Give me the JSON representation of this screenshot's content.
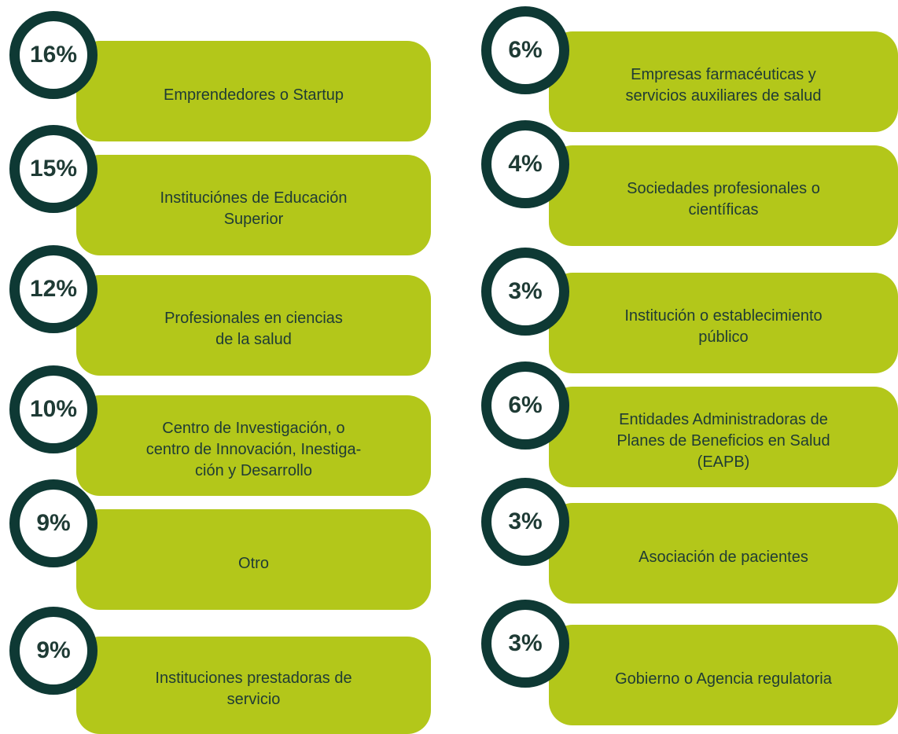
{
  "columns": [
    {
      "items": [
        {
          "percent": "16%",
          "lines": [
            "Emprendedores o Startup"
          ]
        },
        {
          "percent": "15%",
          "lines": [
            "Instituciónes de Educación",
            "Superior"
          ]
        },
        {
          "percent": "12%",
          "lines": [
            "Profesionales en ciencias",
            "de la salud"
          ]
        },
        {
          "percent": "10%",
          "lines": [
            "Centro de Investigación, o",
            "centro de Innovación, Inestiga-",
            "ción y Desarrollo"
          ]
        },
        {
          "percent": "9%",
          "lines": [
            "Otro"
          ]
        },
        {
          "percent": "9%",
          "lines": [
            "Instituciones prestadoras de",
            "servicio"
          ]
        }
      ]
    },
    {
      "items": [
        {
          "percent": "6%",
          "lines": [
            "Empresas farmacéuticas y",
            "servicios auxiliares de salud"
          ]
        },
        {
          "percent": "4%",
          "lines": [
            "Sociedades profesionales o",
            "científicas"
          ]
        },
        {
          "percent": "3%",
          "lines": [
            "Institución o establecimiento",
            "público"
          ]
        },
        {
          "percent": "6%",
          "lines": [
            "Entidades Administradoras de",
            "Planes de Beneficios en Salud",
            "(EAPB)"
          ]
        },
        {
          "percent": "3%",
          "lines": [
            "Asociación de pacientes"
          ]
        },
        {
          "percent": "3%",
          "lines": [
            "Gobierno o Agencia regulatoria"
          ]
        }
      ]
    }
  ]
}
